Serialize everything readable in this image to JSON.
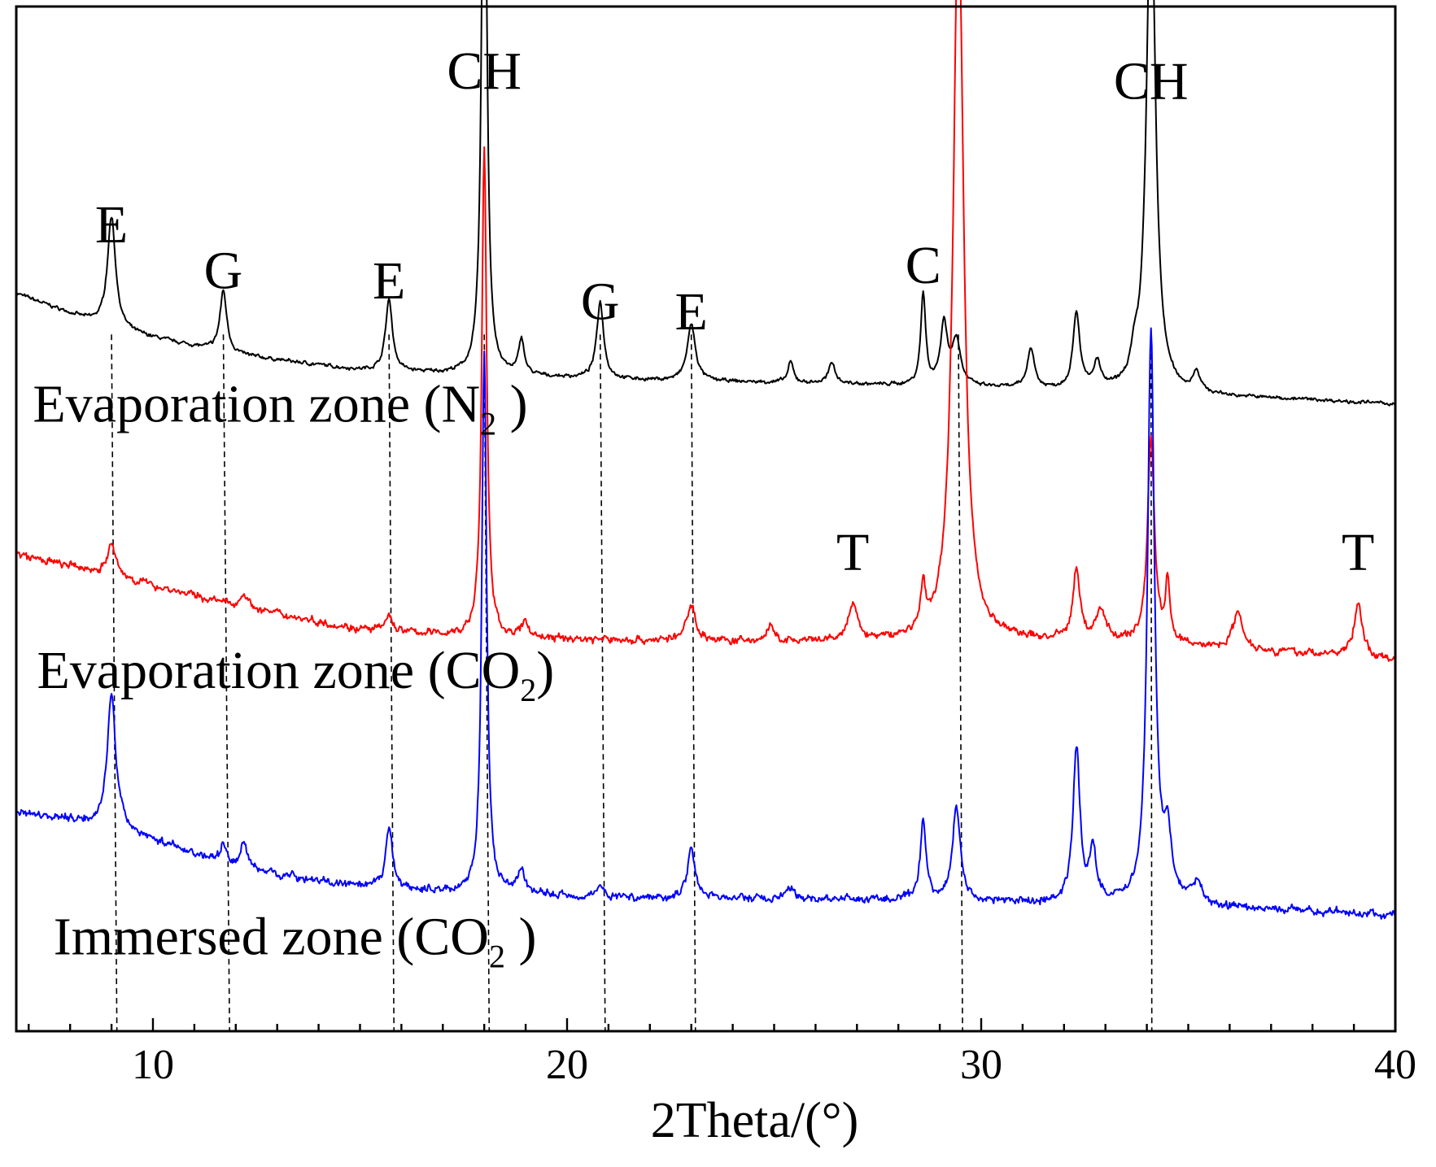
{
  "chart_data": {
    "type": "line",
    "title": "",
    "xlabel": "2Theta/(°)",
    "ylabel": "",
    "xlim": [
      6.7,
      40
    ],
    "ylim": [
      0,
      100
    ],
    "xticks": [
      "10",
      "20",
      "30",
      "40"
    ],
    "grid": false,
    "series": [
      {
        "name": "Evaporation zone (N2 )",
        "label_main": "Evaporation zone (N",
        "label_sub": "2",
        "label_tail": " )",
        "color": "#000000",
        "baseline": [
          [
            6.7,
            72
          ],
          [
            9.0,
            68.5
          ],
          [
            12,
            66
          ],
          [
            15,
            64.5
          ],
          [
            18,
            64
          ],
          [
            22,
            63.5
          ],
          [
            26,
            63.2
          ],
          [
            30,
            62.8
          ],
          [
            34,
            62.2
          ],
          [
            38,
            61.6
          ],
          [
            40,
            61.2
          ]
        ],
        "noise": 0.25,
        "peaks": [
          [
            9.0,
            11,
            0.12
          ],
          [
            11.7,
            6,
            0.1
          ],
          [
            15.7,
            7,
            0.1
          ],
          [
            18.0,
            65,
            0.07
          ],
          [
            18.9,
            3.5,
            0.08
          ],
          [
            20.8,
            7.5,
            0.1
          ],
          [
            23.0,
            5.5,
            0.12
          ],
          [
            25.4,
            2,
            0.08
          ],
          [
            26.4,
            2,
            0.1
          ],
          [
            28.6,
            9,
            0.07
          ],
          [
            29.1,
            6,
            0.1
          ],
          [
            29.4,
            4.5,
            0.12
          ],
          [
            31.2,
            4,
            0.1
          ],
          [
            32.3,
            7.5,
            0.1
          ],
          [
            32.8,
            2.5,
            0.1
          ],
          [
            33.7,
            2,
            0.1
          ],
          [
            34.1,
            50,
            0.13
          ],
          [
            35.2,
            2,
            0.1
          ]
        ]
      },
      {
        "name": "Evaporation zone (CO2)",
        "label_main": "Evaporation zone (CO",
        "label_sub": "2",
        "label_tail": ")",
        "color": "#ff0000",
        "baseline": [
          [
            6.7,
            46.5
          ],
          [
            9.0,
            44.5
          ],
          [
            12,
            41.5
          ],
          [
            15,
            39.2
          ],
          [
            18,
            38.4
          ],
          [
            22,
            38.1
          ],
          [
            26,
            37.9
          ],
          [
            30,
            38.2
          ],
          [
            34,
            37.8
          ],
          [
            38,
            36.8
          ],
          [
            40,
            36.2
          ]
        ],
        "noise": 0.55,
        "peaks": [
          [
            9.0,
            3,
            0.12
          ],
          [
            12.2,
            1.5,
            0.1
          ],
          [
            15.7,
            1.5,
            0.1
          ],
          [
            18.0,
            48,
            0.07
          ],
          [
            19.0,
            1.5,
            0.1
          ],
          [
            23.0,
            3.5,
            0.13
          ],
          [
            24.9,
            1.5,
            0.1
          ],
          [
            26.9,
            3.5,
            0.13
          ],
          [
            28.6,
            4,
            0.07
          ],
          [
            29.45,
            72,
            0.15
          ],
          [
            32.3,
            7,
            0.1
          ],
          [
            32.9,
            3,
            0.14
          ],
          [
            34.1,
            20,
            0.1
          ],
          [
            34.5,
            6,
            0.06
          ],
          [
            36.2,
            3.5,
            0.15
          ],
          [
            39.1,
            5,
            0.13
          ]
        ]
      },
      {
        "name": "Immersed zone (CO2 )",
        "label_main": "Immersed zone (CO",
        "label_sub": "2",
        "label_tail": " )",
        "color": "#0000ff",
        "baseline": [
          [
            6.7,
            21.5
          ],
          [
            9.0,
            20
          ],
          [
            12,
            16
          ],
          [
            15,
            14
          ],
          [
            18,
            13.4
          ],
          [
            22,
            13
          ],
          [
            26,
            12.9
          ],
          [
            30,
            12.6
          ],
          [
            34,
            12.3
          ],
          [
            38,
            11.7
          ],
          [
            40,
            11.3
          ]
        ],
        "noise": 0.55,
        "peaks": [
          [
            9.0,
            13,
            0.12
          ],
          [
            11.7,
            2,
            0.08
          ],
          [
            12.2,
            2.5,
            0.1
          ],
          [
            15.7,
            6,
            0.1
          ],
          [
            18.0,
            53,
            0.07
          ],
          [
            18.9,
            2.5,
            0.1
          ],
          [
            20.8,
            1.2,
            0.08
          ],
          [
            23.0,
            5,
            0.11
          ],
          [
            25.4,
            1,
            0.1
          ],
          [
            28.6,
            8,
            0.08
          ],
          [
            29.4,
            9,
            0.12
          ],
          [
            32.3,
            15,
            0.1
          ],
          [
            32.7,
            5,
            0.1
          ],
          [
            34.1,
            56,
            0.1
          ],
          [
            34.5,
            6,
            0.12
          ],
          [
            35.2,
            2,
            0.15
          ]
        ]
      }
    ],
    "annotations": [
      {
        "text": "E",
        "x": 9.0,
        "y": 77
      },
      {
        "text": "G",
        "x": 11.7,
        "y": 72.5
      },
      {
        "text": "E",
        "x": 15.7,
        "y": 71.5
      },
      {
        "text": "CH",
        "x": 18.0,
        "y": 92
      },
      {
        "text": "G",
        "x": 20.8,
        "y": 69.5
      },
      {
        "text": "E",
        "x": 23.0,
        "y": 68.5
      },
      {
        "text": "C",
        "x": 28.6,
        "y": 73
      },
      {
        "text": "CH",
        "x": 34.1,
        "y": 91
      },
      {
        "text": "T",
        "x": 26.9,
        "y": 45
      },
      {
        "text": "T",
        "x": 39.1,
        "y": 45
      }
    ],
    "reference_lines": [
      {
        "x_top": 9.0,
        "x_bottom": 9.13
      },
      {
        "x_top": 11.7,
        "x_bottom": 11.85
      },
      {
        "x_top": 15.7,
        "x_bottom": 15.82
      },
      {
        "x_top": 18.0,
        "x_bottom": 18.12
      },
      {
        "x_top": 20.8,
        "x_bottom": 20.92
      },
      {
        "x_top": 23.0,
        "x_bottom": 23.1
      },
      {
        "x_top": 29.45,
        "x_bottom": 29.55
      },
      {
        "x_top": 34.1,
        "x_bottom": 34.12
      }
    ]
  }
}
